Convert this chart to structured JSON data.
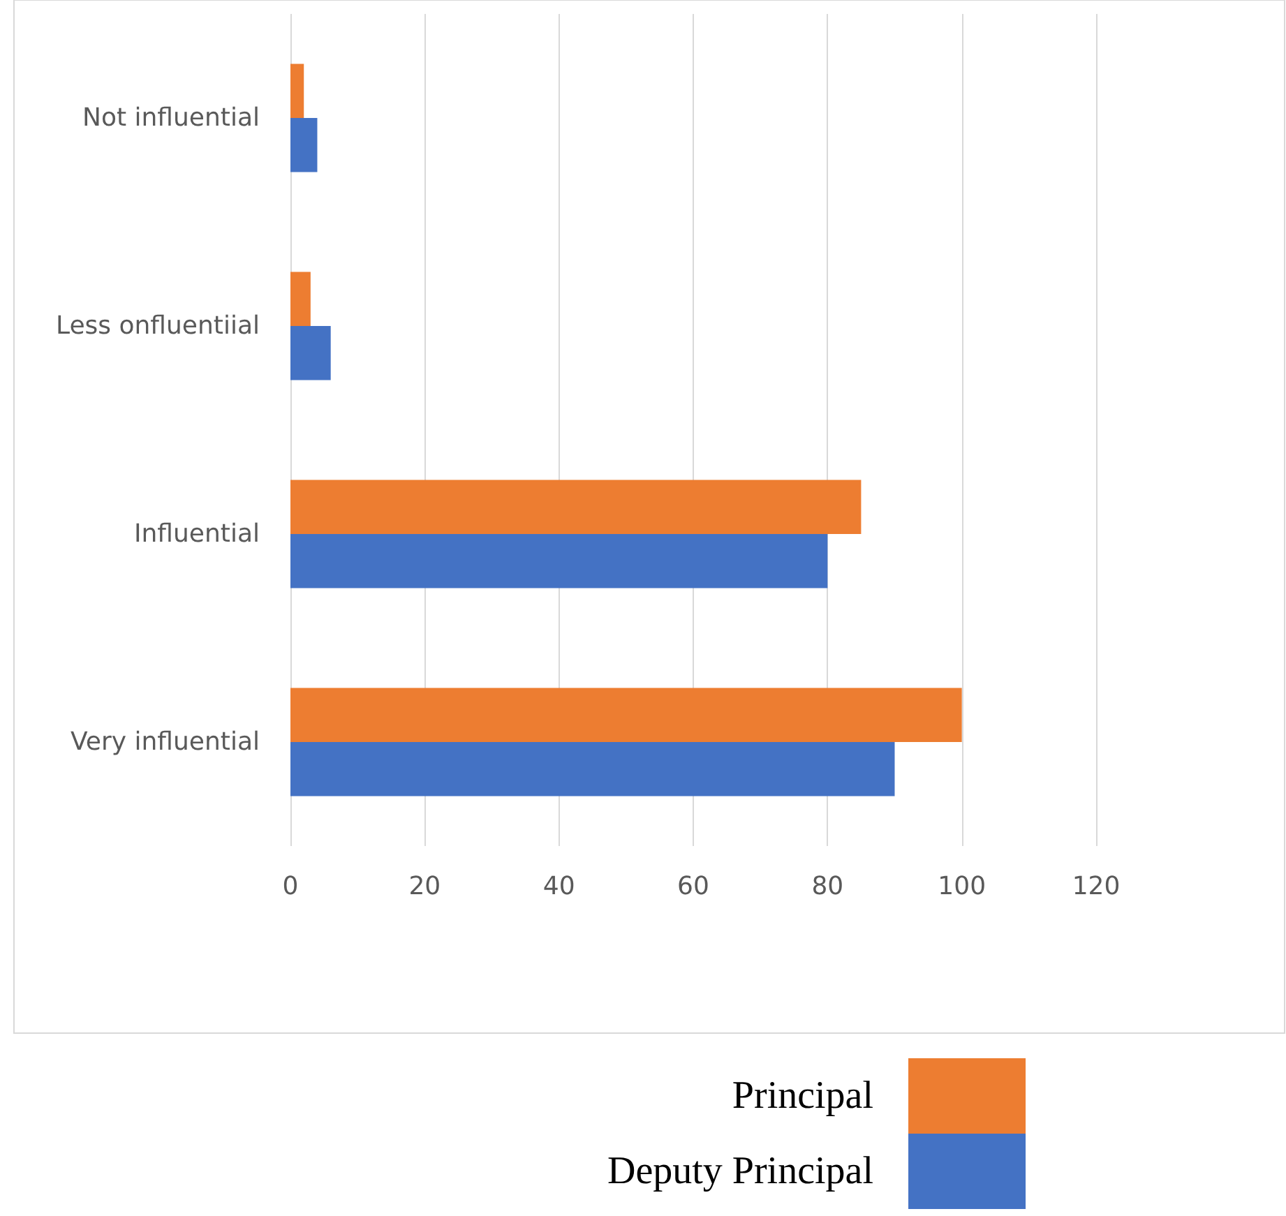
{
  "chart_data": {
    "type": "bar",
    "orientation": "horizontal",
    "categories": [
      "Not influential",
      "Less onfluentiial",
      "Influential",
      "Very influential"
    ],
    "series": [
      {
        "name": "Principal",
        "color": "#ed7d31",
        "values": [
          2,
          3,
          85,
          100
        ]
      },
      {
        "name": "Deputy Principal",
        "color": "#4472c4",
        "values": [
          4,
          6,
          80,
          90
        ]
      }
    ],
    "xlim": [
      0,
      120
    ],
    "xticks": [
      0,
      20,
      40,
      60,
      80,
      100,
      120
    ],
    "grid": "x",
    "legend": "bottom"
  }
}
